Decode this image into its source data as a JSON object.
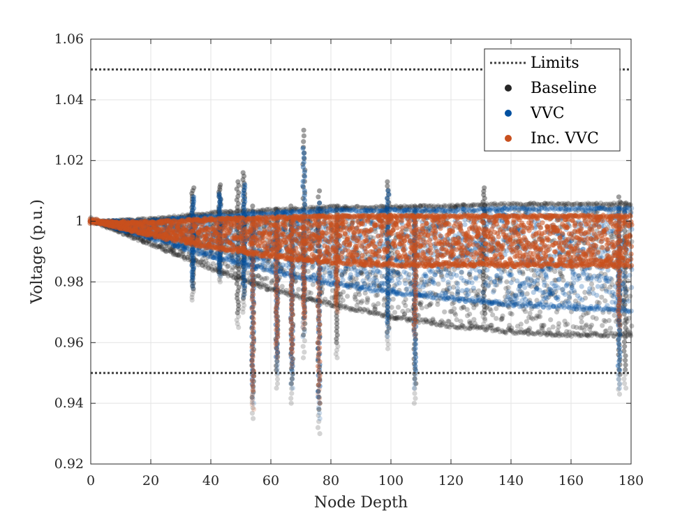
{
  "chart_data": {
    "type": "scatter",
    "title": "",
    "xlabel": "Node Depth",
    "ylabel": "Voltage (p.u.)",
    "xlim": [
      0,
      180
    ],
    "ylim": [
      0.92,
      1.06
    ],
    "grid": true,
    "legend_position": "top-right",
    "x_ticks": [
      0,
      20,
      40,
      60,
      80,
      100,
      120,
      140,
      160,
      180
    ],
    "y_ticks": [
      0.92,
      0.94,
      0.96,
      0.98,
      1.0,
      1.02,
      1.04,
      1.06
    ],
    "x_tick_labels": [
      "0",
      "20",
      "40",
      "60",
      "80",
      "100",
      "120",
      "140",
      "160",
      "180"
    ],
    "y_tick_labels": [
      "0.92",
      "0.94",
      "0.96",
      "0.98",
      "1",
      "1.02",
      "1.04",
      "1.06"
    ],
    "limits": {
      "name": "Limits",
      "upper": 1.05,
      "lower": 0.95,
      "color": "#404040"
    },
    "series": [
      {
        "name": "Baseline",
        "color": "#262626",
        "band_x": [
          0,
          20,
          40,
          60,
          80,
          100,
          120,
          140,
          160,
          180
        ],
        "band_upper": [
          1.0,
          1.001,
          1.003,
          1.004,
          1.005,
          1.005,
          1.0055,
          1.006,
          1.006,
          1.006
        ],
        "band_lower": [
          1.0,
          0.992,
          0.984,
          0.977,
          0.972,
          0.968,
          0.965,
          0.963,
          0.962,
          0.962
        ],
        "spikes": [
          {
            "x": 34,
            "high": 1.011,
            "low": 0.974
          },
          {
            "x": 43,
            "high": 1.012,
            "low": 0.98
          },
          {
            "x": 49,
            "high": 1.013,
            "low": 0.965
          },
          {
            "x": 51,
            "high": 1.016,
            "low": 0.97
          },
          {
            "x": 54,
            "high": 1.005,
            "low": 0.935
          },
          {
            "x": 62,
            "high": 1.004,
            "low": 0.945
          },
          {
            "x": 67,
            "high": 1.005,
            "low": 0.94
          },
          {
            "x": 71,
            "high": 1.03,
            "low": 0.955
          },
          {
            "x": 76,
            "high": 1.01,
            "low": 0.93
          },
          {
            "x": 82,
            "high": 1.005,
            "low": 0.955
          },
          {
            "x": 99,
            "high": 1.013,
            "low": 0.958
          },
          {
            "x": 108,
            "high": 1.005,
            "low": 0.94
          },
          {
            "x": 131,
            "high": 1.011,
            "low": 0.965
          },
          {
            "x": 176,
            "high": 1.008,
            "low": 0.943
          },
          {
            "x": 178,
            "high": 1.006,
            "low": 0.945
          }
        ]
      },
      {
        "name": "VVC",
        "color": "#0050a0",
        "band_x": [
          0,
          20,
          40,
          60,
          80,
          100,
          120,
          140,
          160,
          180
        ],
        "band_upper": [
          1.0,
          1.0005,
          1.002,
          1.003,
          1.004,
          1.004,
          1.004,
          1.0045,
          1.0045,
          1.0045
        ],
        "band_lower": [
          1.0,
          0.994,
          0.988,
          0.983,
          0.979,
          0.976,
          0.974,
          0.972,
          0.971,
          0.97
        ],
        "spikes": [
          {
            "x": 34,
            "high": 1.008,
            "low": 0.978
          },
          {
            "x": 43,
            "high": 1.009,
            "low": 0.982
          },
          {
            "x": 51,
            "high": 1.012,
            "low": 0.975
          },
          {
            "x": 54,
            "high": 1.003,
            "low": 0.94
          },
          {
            "x": 62,
            "high": 1.003,
            "low": 0.95
          },
          {
            "x": 67,
            "high": 1.003,
            "low": 0.945
          },
          {
            "x": 71,
            "high": 1.024,
            "low": 0.962
          },
          {
            "x": 76,
            "high": 1.006,
            "low": 0.935
          },
          {
            "x": 99,
            "high": 1.01,
            "low": 0.962
          },
          {
            "x": 108,
            "high": 1.003,
            "low": 0.945
          },
          {
            "x": 176,
            "high": 1.004,
            "low": 0.945
          }
        ]
      },
      {
        "name": "Inc. VVC",
        "color": "#c8501e",
        "band_x": [
          0,
          20,
          40,
          60,
          80,
          100,
          120,
          140,
          160,
          180
        ],
        "band_upper": [
          1.0,
          1.0,
          1.001,
          1.0015,
          1.002,
          1.002,
          1.002,
          1.002,
          1.002,
          1.002
        ],
        "band_lower": [
          1.0,
          0.995,
          0.991,
          0.988,
          0.986,
          0.985,
          0.985,
          0.985,
          0.985,
          0.985
        ],
        "spikes": [
          {
            "x": 54,
            "high": 1.001,
            "low": 0.938
          },
          {
            "x": 62,
            "high": 1.001,
            "low": 0.955
          },
          {
            "x": 67,
            "high": 1.001,
            "low": 0.952
          },
          {
            "x": 71,
            "high": 1.002,
            "low": 0.965
          },
          {
            "x": 76,
            "high": 1.001,
            "low": 0.94
          },
          {
            "x": 82,
            "high": 1.001,
            "low": 0.97
          },
          {
            "x": 108,
            "high": 1.001,
            "low": 0.962
          },
          {
            "x": 176,
            "high": 1.001,
            "low": 0.965
          }
        ]
      }
    ]
  }
}
